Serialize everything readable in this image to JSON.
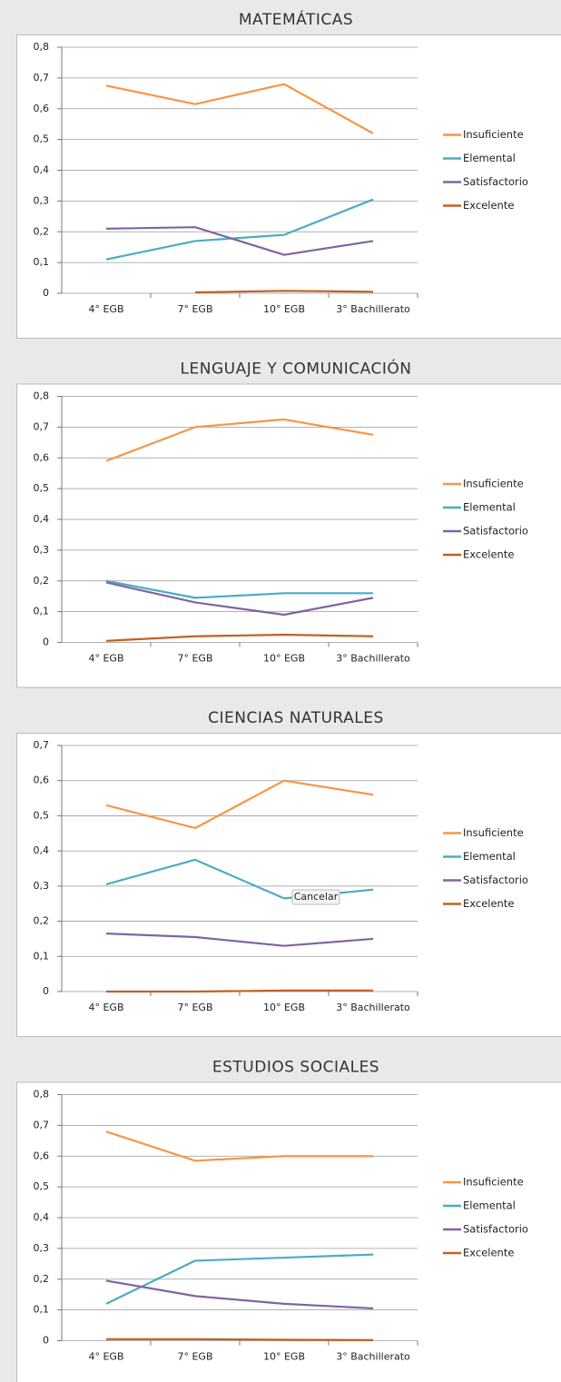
{
  "chart_data": [
    {
      "type": "line",
      "title": "MATEMÁTICAS",
      "categories": [
        "4° EGB",
        "7° EGB",
        "10° EGB",
        "3° Bachillerato"
      ],
      "ylim": [
        0,
        0.8
      ],
      "yticks": [
        0,
        {
          "value": 0.1,
          "label": "0,1"
        },
        {
          "value": 0.2,
          "label": "0,2"
        },
        {
          "value": 0.3,
          "label": "0,3"
        },
        {
          "value": 0.4,
          "label": "0,4"
        },
        {
          "value": 0.5,
          "label": "0,5"
        },
        {
          "value": 0.6,
          "label": "0,6"
        },
        {
          "value": 0.7,
          "label": "0,7"
        },
        {
          "value": 0.8,
          "label": "0,8"
        }
      ],
      "grid": true,
      "legend": "right",
      "series": [
        {
          "name": "Insuficiente",
          "color": "#f79646",
          "values": [
            0.675,
            0.615,
            0.68,
            0.52
          ]
        },
        {
          "name": "Elemental",
          "color": "#4bacc6",
          "values": [
            0.11,
            0.17,
            0.19,
            0.305
          ]
        },
        {
          "name": "Satisfactorio",
          "color": "#8064a2",
          "values": [
            0.21,
            0.215,
            0.125,
            0.17
          ]
        },
        {
          "name": "Excelente",
          "color": "#c4601f",
          "values": [
            null,
            0.003,
            0.008,
            0.005
          ]
        }
      ]
    },
    {
      "type": "line",
      "title": "LENGUAJE Y COMUNICACIÓN",
      "categories": [
        "4° EGB",
        "7° EGB",
        "10° EGB",
        "3° Bachillerato"
      ],
      "ylim": [
        0,
        0.8
      ],
      "yticks": [
        0,
        {
          "value": 0.1,
          "label": "0,1"
        },
        {
          "value": 0.2,
          "label": "0,2"
        },
        {
          "value": 0.3,
          "label": "0,3"
        },
        {
          "value": 0.4,
          "label": "0,4"
        },
        {
          "value": 0.5,
          "label": "0,5"
        },
        {
          "value": 0.6,
          "label": "0,6"
        },
        {
          "value": 0.7,
          "label": "0,7"
        },
        {
          "value": 0.8,
          "label": "0,8"
        }
      ],
      "grid": true,
      "legend": "right",
      "series": [
        {
          "name": "Insuficiente",
          "color": "#f79646",
          "values": [
            0.59,
            0.7,
            0.725,
            0.675
          ]
        },
        {
          "name": "Elemental",
          "color": "#4bacc6",
          "values": [
            0.2,
            0.145,
            0.16,
            0.16
          ]
        },
        {
          "name": "Satisfactorio",
          "color": "#8064a2",
          "values": [
            0.195,
            0.13,
            0.09,
            0.145
          ]
        },
        {
          "name": "Excelente",
          "color": "#c4601f",
          "values": [
            0.005,
            0.02,
            0.025,
            0.02
          ]
        }
      ]
    },
    {
      "type": "line",
      "title": "CIENCIAS NATURALES",
      "categories": [
        "4° EGB",
        "7° EGB",
        "10° EGB",
        "3° Bachillerato"
      ],
      "ylim": [
        0,
        0.7
      ],
      "yticks": [
        0,
        {
          "value": 0.1,
          "label": "0,1"
        },
        {
          "value": 0.2,
          "label": "0,2"
        },
        {
          "value": 0.3,
          "label": "0,3"
        },
        {
          "value": 0.4,
          "label": "0,4"
        },
        {
          "value": 0.5,
          "label": "0,5"
        },
        {
          "value": 0.6,
          "label": "0,6"
        },
        {
          "value": 0.7,
          "label": "0,7"
        }
      ],
      "grid": true,
      "legend": "right",
      "annotation": "Cancelar",
      "series": [
        {
          "name": "Insuficiente",
          "color": "#f79646",
          "values": [
            0.53,
            0.465,
            0.6,
            0.56
          ]
        },
        {
          "name": "Elemental",
          "color": "#4bacc6",
          "values": [
            0.305,
            0.375,
            0.265,
            0.29
          ]
        },
        {
          "name": "Satisfactorio",
          "color": "#8064a2",
          "values": [
            0.165,
            0.155,
            0.13,
            0.15
          ]
        },
        {
          "name": "Excelente",
          "color": "#c4601f",
          "values": [
            0,
            0,
            0.003,
            0.003
          ]
        }
      ]
    },
    {
      "type": "line",
      "title": "ESTUDIOS SOCIALES",
      "categories": [
        "4° EGB",
        "7° EGB",
        "10° EGB",
        "3° Bachillerato"
      ],
      "ylim": [
        0,
        0.8
      ],
      "yticks": [
        0,
        {
          "value": 0.1,
          "label": "0,1"
        },
        {
          "value": 0.2,
          "label": "0,2"
        },
        {
          "value": 0.3,
          "label": "0,3"
        },
        {
          "value": 0.4,
          "label": "0,4"
        },
        {
          "value": 0.5,
          "label": "0,5"
        },
        {
          "value": 0.6,
          "label": "0,6"
        },
        {
          "value": 0.7,
          "label": "0,7"
        },
        {
          "value": 0.8,
          "label": "0,8"
        }
      ],
      "grid": true,
      "legend": "right",
      "series": [
        {
          "name": "Insuficiente",
          "color": "#f79646",
          "values": [
            0.68,
            0.585,
            0.6,
            0.6
          ]
        },
        {
          "name": "Elemental",
          "color": "#4bacc6",
          "values": [
            0.12,
            0.26,
            0.27,
            0.28
          ]
        },
        {
          "name": "Satisfactorio",
          "color": "#8064a2",
          "values": [
            0.195,
            0.145,
            0.12,
            0.105
          ]
        },
        {
          "name": "Excelente",
          "color": "#c4601f",
          "values": [
            0.005,
            0.005,
            0.003,
            0.002
          ]
        }
      ]
    }
  ]
}
